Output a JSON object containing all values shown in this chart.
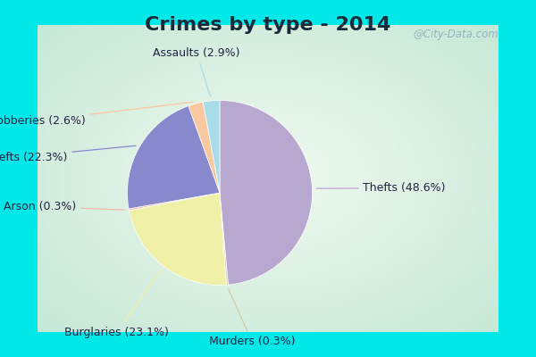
{
  "title": "Crimes by type - 2014",
  "plot_labels": [
    "Thefts",
    "Murders",
    "Burglaries",
    "Arson",
    "Auto thefts",
    "Robberies",
    "Assaults"
  ],
  "plot_values": [
    48.6,
    0.3,
    23.1,
    0.3,
    22.3,
    2.6,
    2.9
  ],
  "plot_colors": [
    "#b8a8d0",
    "#d4c8a8",
    "#f0f0a8",
    "#f0b8a8",
    "#8888cc",
    "#f8c8a0",
    "#a8dce8"
  ],
  "border_color": "#00e8e8",
  "bg_color_center": "#e8f5ee",
  "bg_color_edge": "#c8e8d8",
  "title_fontsize": 16,
  "label_fontsize": 9,
  "border_width": 0.07,
  "watermark": "@City-Data.com",
  "startangle": 90
}
